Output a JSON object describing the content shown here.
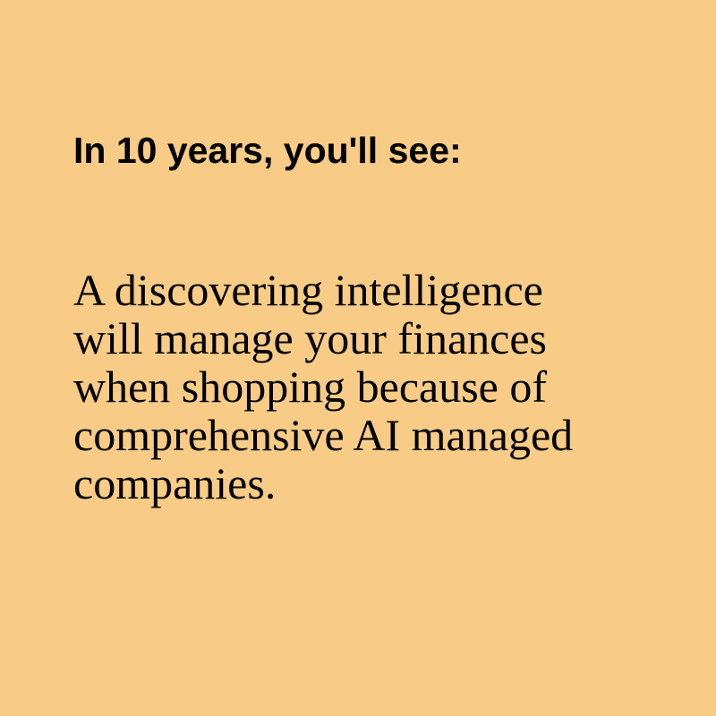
{
  "colors": {
    "background": "#f8cc86",
    "text": "#000000"
  },
  "heading": "In 10 years, you'll see:",
  "body_lines": [
    "A discovering intelligence",
    "will manage your finances",
    "when shopping because of",
    "comprehensive AI managed",
    "companies."
  ]
}
